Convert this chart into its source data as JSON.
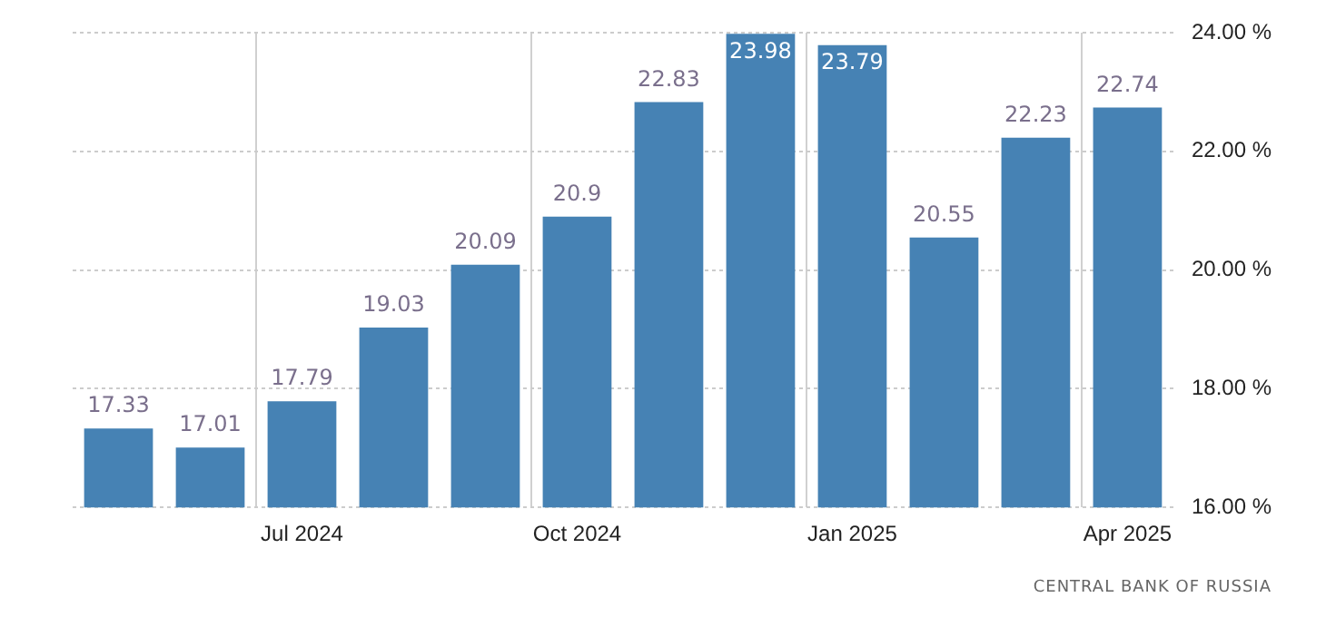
{
  "chart_data": {
    "type": "bar",
    "categories": [
      null,
      null,
      "Jul 2024",
      null,
      null,
      "Oct 2024",
      null,
      null,
      "Jan 2025",
      null,
      null,
      "Apr 2025"
    ],
    "values": [
      17.33,
      17.01,
      17.79,
      19.03,
      20.09,
      20.9,
      22.83,
      23.98,
      23.79,
      20.55,
      22.23,
      22.74
    ],
    "color": "#4682b4",
    "ylim": [
      16,
      24
    ],
    "yticks": [
      {
        "value": 16,
        "label": "16.00 %"
      },
      {
        "value": 18,
        "label": "18.00 %"
      },
      {
        "value": 20,
        "label": "20.00 %"
      },
      {
        "value": 22,
        "label": "22.00 %"
      },
      {
        "value": 24,
        "label": "24.00 %"
      }
    ],
    "grid": true,
    "data_labels": true,
    "annotations": [
      "CENTRAL BANK OF RUSSIA"
    ]
  }
}
